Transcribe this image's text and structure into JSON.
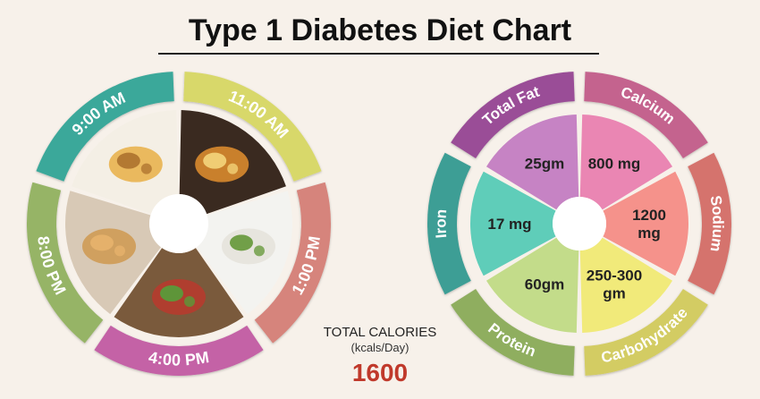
{
  "title": "Type 1 Diabetes Diet Chart",
  "meal_wheel": {
    "segments": [
      {
        "label": "9:00 AM",
        "color": "#3aa89a",
        "icon": "dosa-plate-photo"
      },
      {
        "label": "11:00 AM",
        "color": "#d8d86a",
        "icon": "sweet-potato-photo"
      },
      {
        "label": "1:00 PM",
        "color": "#d6847c",
        "icon": "rice-bowl-photo"
      },
      {
        "label": "4:00 PM",
        "color": "#c462a6",
        "icon": "salad-bowl-photo"
      },
      {
        "label": "8:00 PM",
        "color": "#96b466",
        "icon": "roti-stack-photo"
      }
    ]
  },
  "nutrient_wheel": {
    "segments": [
      {
        "label": "Total Fat",
        "value": "25gm",
        "ring_color": "#9a4e97",
        "fill_color": "#c683c4"
      },
      {
        "label": "Calcium",
        "value": "800 mg",
        "ring_color": "#c4638e",
        "fill_color": "#ea86b3"
      },
      {
        "label": "Sodium",
        "value": "1200 mg",
        "ring_color": "#d5736d",
        "fill_color": "#f5928b"
      },
      {
        "label": "Carbohydrate",
        "value": "250-300 gm",
        "ring_color": "#d3cc63",
        "fill_color": "#f1ea7a"
      },
      {
        "label": "Protein",
        "value": "60gm",
        "ring_color": "#8fae5e",
        "fill_color": "#c3dc8a"
      },
      {
        "label": "Iron",
        "value": "17 mg",
        "ring_color": "#3e9e95",
        "fill_color": "#5fcdb9"
      }
    ]
  },
  "total_calories": {
    "label": "TOTAL CALORIES",
    "unit": "(kcals/Day)",
    "value": "1600",
    "value_color": "#c0392b"
  }
}
